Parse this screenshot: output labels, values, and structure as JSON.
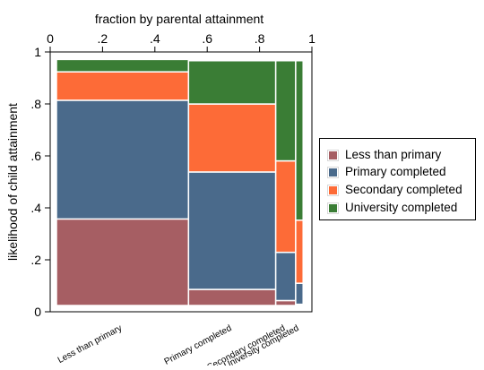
{
  "chart_data": {
    "type": "mosaic",
    "title": "",
    "xlabel": "fraction by parental attainment",
    "ylabel": "likelihood of child attainment",
    "xlim": [
      0,
      1
    ],
    "ylim": [
      0,
      1
    ],
    "x_ticks": [
      "0",
      ".2",
      ".4",
      ".6",
      ".8",
      "1"
    ],
    "y_ticks": [
      "0",
      ".2",
      ".4",
      ".6",
      ".8",
      "1"
    ],
    "legend_position": "right",
    "grid": false,
    "parent_categories": [
      {
        "name": "Less than primary",
        "width": 0.53
      },
      {
        "name": "Primary completed",
        "width": 0.35
      },
      {
        "name": "Secondary completed",
        "width": 0.08
      },
      {
        "name": "University completed",
        "width": 0.03
      }
    ],
    "series": [
      {
        "name": "Less than primary",
        "color": "#a65e63",
        "values": [
          0.35,
          0.065,
          0.02,
          0.005
        ]
      },
      {
        "name": "Primary completed",
        "color": "#4a6a8b",
        "values": [
          0.48,
          0.475,
          0.195,
          0.085
        ]
      },
      {
        "name": "Secondary completed",
        "color": "#fd6b37",
        "values": [
          0.115,
          0.275,
          0.37,
          0.255
        ]
      },
      {
        "name": "University completed",
        "color": "#3a7d35",
        "values": [
          0.05,
          0.175,
          0.405,
          0.645
        ]
      }
    ]
  }
}
